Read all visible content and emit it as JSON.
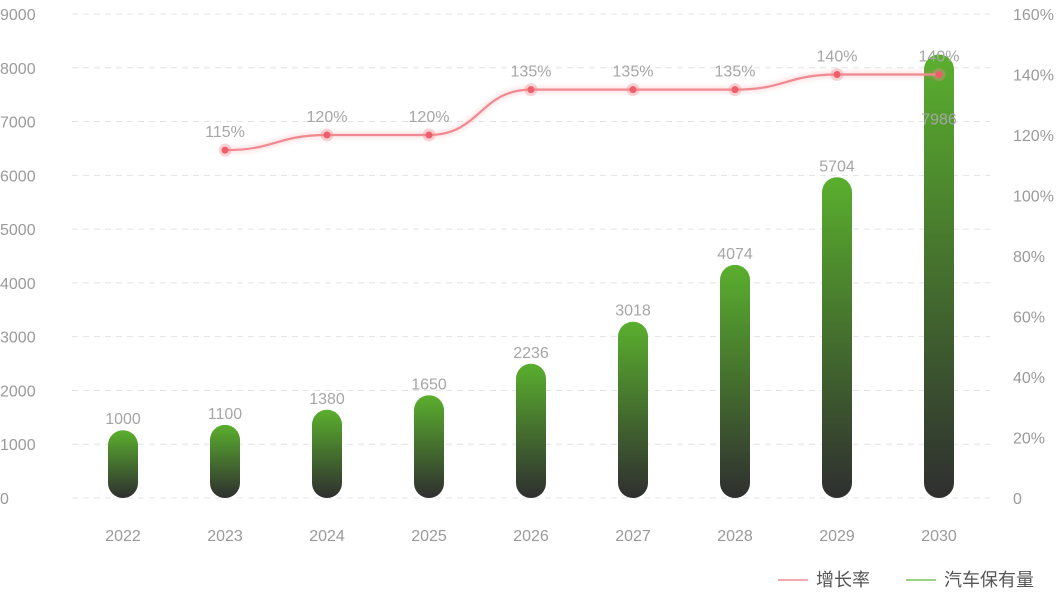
{
  "chart_data": {
    "type": "bar",
    "categories": [
      "2022",
      "2023",
      "2024",
      "2025",
      "2026",
      "2027",
      "2028",
      "2029",
      "2030"
    ],
    "series": [
      {
        "name": "汽车保有量",
        "type": "bar",
        "axis": "left",
        "values": [
          1000,
          1100,
          1380,
          1650,
          2236,
          3018,
          4074,
          5704,
          7986
        ],
        "labels": [
          "1000",
          "1100",
          "1380",
          "1650",
          "2236",
          "3018",
          "4074",
          "5704",
          "7986"
        ],
        "color_top": "#5aaf2e",
        "color_bottom": "#2f2f2f"
      },
      {
        "name": "增长率",
        "type": "line",
        "axis": "right",
        "values": [
          null,
          115,
          120,
          120,
          135,
          135,
          135,
          140,
          140
        ],
        "labels": [
          "",
          "115%",
          "120%",
          "120%",
          "135%",
          "135%",
          "135%",
          "140%",
          "140%"
        ],
        "color": "#f08a90"
      }
    ],
    "y_left": {
      "min": 0,
      "max": 9000,
      "ticks": [
        "0",
        "1000",
        "2000",
        "3000",
        "4000",
        "5000",
        "6000",
        "7000",
        "8000",
        "9000"
      ]
    },
    "y_right": {
      "min": 0,
      "max": 160,
      "ticks": [
        "0",
        "20%",
        "40%",
        "60%",
        "80%",
        "100%",
        "120%",
        "140%",
        "160%"
      ]
    },
    "grid": true,
    "legend_position": "bottom-right",
    "legend": [
      {
        "label": "增长率",
        "color": "#f08a90"
      },
      {
        "label": "汽车保有量",
        "color": "#7ac45a"
      }
    ]
  }
}
